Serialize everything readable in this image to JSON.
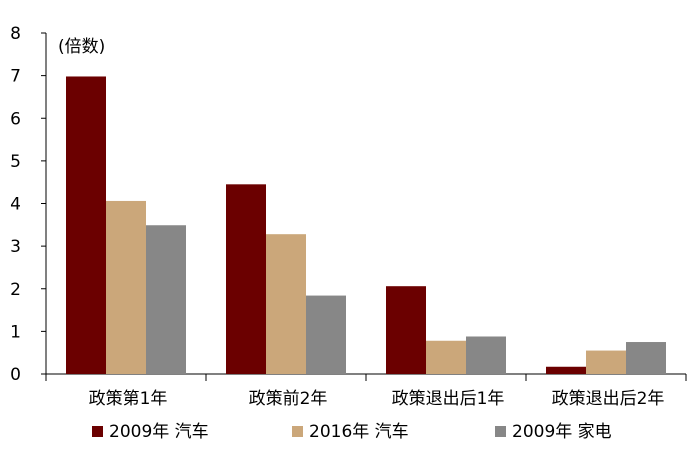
{
  "chart_data": {
    "type": "bar",
    "unit_label": "(倍数)",
    "categories": [
      "政策第1年",
      "政策前2年",
      "政策退出后1年",
      "政策退出后2年"
    ],
    "series": [
      {
        "name": "2009年 汽车",
        "color": "#6b0000",
        "values": [
          6.98,
          4.45,
          2.06,
          0.17
        ]
      },
      {
        "name": "2016年 汽车",
        "color": "#cba77a",
        "values": [
          4.06,
          3.28,
          0.78,
          0.55
        ]
      },
      {
        "name": "2009年 家电",
        "color": "#878787",
        "values": [
          3.49,
          1.84,
          0.88,
          0.75
        ]
      }
    ],
    "ylim": [
      0,
      8
    ],
    "yticks": [
      "0",
      "1",
      "2",
      "3",
      "4",
      "5",
      "6",
      "7",
      "8"
    ],
    "grid": false,
    "legend_position": "bottom"
  }
}
